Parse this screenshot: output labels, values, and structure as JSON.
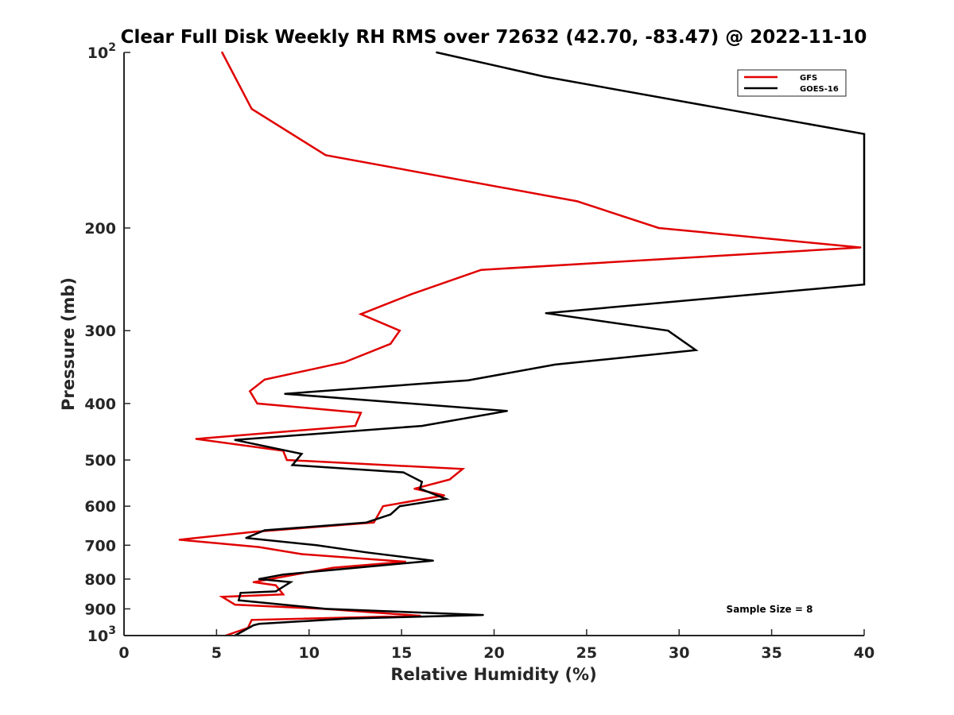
{
  "chart_data": {
    "type": "line",
    "title": "Clear Full Disk Weekly RH RMS over 72632 (42.70, -83.47) @ 2022-11-10",
    "xlabel": "Relative Humidity (%)",
    "ylabel": "Pressure (mb)",
    "xlim": [
      0,
      40
    ],
    "ylim": [
      100,
      1000
    ],
    "y_scale": "log",
    "y_reversed": true,
    "grid": false,
    "legend_position": "top-right",
    "x_ticks": [
      "0",
      "5",
      "10",
      "15",
      "20",
      "25",
      "30",
      "35",
      "40"
    ],
    "y_ticks": [
      {
        "value": 100,
        "label": "10",
        "sup": "2"
      },
      {
        "value": 200,
        "label": "200",
        "sup": ""
      },
      {
        "value": 300,
        "label": "300",
        "sup": ""
      },
      {
        "value": 400,
        "label": "400",
        "sup": ""
      },
      {
        "value": 500,
        "label": "500",
        "sup": ""
      },
      {
        "value": 600,
        "label": "600",
        "sup": ""
      },
      {
        "value": 700,
        "label": "700",
        "sup": ""
      },
      {
        "value": 800,
        "label": "800",
        "sup": ""
      },
      {
        "value": 900,
        "label": "900",
        "sup": ""
      },
      {
        "value": 1000,
        "label": "10",
        "sup": "3"
      }
    ],
    "series": [
      {
        "name": "GFS",
        "color": "#e00000",
        "points": [
          [
            5.3,
            100
          ],
          [
            6.9,
            125
          ],
          [
            10.9,
            150
          ],
          [
            24.5,
            180
          ],
          [
            28.9,
            200
          ],
          [
            39.8,
            216
          ],
          [
            19.3,
            236
          ],
          [
            15.5,
            260
          ],
          [
            12.8,
            281
          ],
          [
            14.9,
            300
          ],
          [
            14.4,
            316
          ],
          [
            11.9,
            340
          ],
          [
            7.6,
            364
          ],
          [
            6.8,
            381
          ],
          [
            7.2,
            400
          ],
          [
            12.8,
            415
          ],
          [
            12.5,
            437
          ],
          [
            3.9,
            460
          ],
          [
            8.6,
            482
          ],
          [
            8.8,
            500
          ],
          [
            18.3,
            518
          ],
          [
            17.6,
            540
          ],
          [
            15.7,
            560
          ],
          [
            17.3,
            575
          ],
          [
            14.0,
            600
          ],
          [
            13.5,
            640
          ],
          [
            7.0,
            664
          ],
          [
            3.0,
            685
          ],
          [
            7.3,
            705
          ],
          [
            9.6,
            725
          ],
          [
            15.2,
            747
          ],
          [
            11.3,
            765
          ],
          [
            9.8,
            780
          ],
          [
            7.0,
            810
          ],
          [
            8.2,
            820
          ],
          [
            8.6,
            850
          ],
          [
            5.3,
            858
          ],
          [
            6.0,
            885
          ],
          [
            10.8,
            900
          ],
          [
            16.0,
            925
          ],
          [
            6.9,
            940
          ],
          [
            6.7,
            970
          ],
          [
            5.5,
            1000
          ]
        ]
      },
      {
        "name": "GOES-16",
        "color": "#000000",
        "points": [
          [
            16.9,
            100
          ],
          [
            22.7,
            110
          ],
          [
            40.0,
            138
          ],
          [
            40.0,
            250
          ],
          [
            22.8,
            280
          ],
          [
            29.4,
            300
          ],
          [
            30.9,
            324
          ],
          [
            23.3,
            343
          ],
          [
            18.6,
            365
          ],
          [
            8.7,
            385
          ],
          [
            20.7,
            412
          ],
          [
            16.1,
            437
          ],
          [
            6.0,
            462
          ],
          [
            9.6,
            488
          ],
          [
            9.1,
            510
          ],
          [
            15.1,
            525
          ],
          [
            16.1,
            545
          ],
          [
            16.0,
            560
          ],
          [
            17.4,
            583
          ],
          [
            14.9,
            600
          ],
          [
            14.4,
            620
          ],
          [
            13.1,
            640
          ],
          [
            7.6,
            660
          ],
          [
            6.6,
            680
          ],
          [
            10.4,
            700
          ],
          [
            13.1,
            720
          ],
          [
            16.7,
            744
          ],
          [
            8.6,
            786
          ],
          [
            7.3,
            800
          ],
          [
            9.0,
            810
          ],
          [
            8.2,
            840
          ],
          [
            6.3,
            845
          ],
          [
            6.2,
            870
          ],
          [
            10.9,
            900
          ],
          [
            19.4,
            922
          ],
          [
            12.1,
            935
          ],
          [
            7.3,
            955
          ],
          [
            7.0,
            960
          ],
          [
            6.0,
            1000
          ]
        ]
      }
    ],
    "legend": [
      {
        "name": "GFS",
        "color": "#e00000"
      },
      {
        "name": "GOES-16",
        "color": "#000000"
      }
    ],
    "annotations": [
      {
        "text": "Sample Size = 8",
        "position": "bottom-right"
      }
    ]
  }
}
